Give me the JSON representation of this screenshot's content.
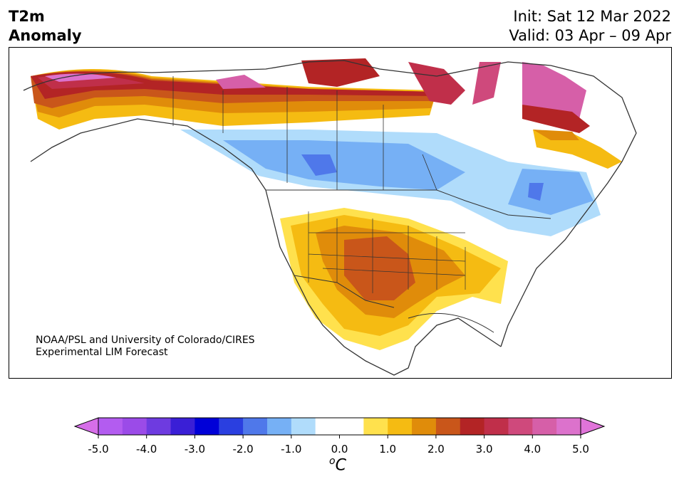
{
  "title_left_line1": "T2m",
  "title_left_line2": "Anomaly",
  "title_right_line1": "Init: Sat 12 Mar 2022",
  "title_right_line2": "Valid: 03 Apr – 09 Apr",
  "credit_line1": "NOAA/PSL and University of Colorado/CIRES",
  "credit_line2": "Experimental LIM Forecast",
  "colorbar": {
    "ticks": [
      "-5.0",
      "-4.0",
      "-3.0",
      "-2.0",
      "-1.0",
      "0.0",
      "1.0",
      "2.0",
      "3.0",
      "4.0",
      "5.0"
    ],
    "unit_base": "C",
    "unit_sup": "o",
    "colors": [
      "#b35cf0",
      "#9b4be8",
      "#6e3be0",
      "#3a1fd6",
      "#0000d8",
      "#2a3fe0",
      "#4f78ea",
      "#76b0f5",
      "#b0dcfb",
      "#ffffff",
      "#ffffff",
      "#ffe14d",
      "#f5bb12",
      "#e08c0a",
      "#c9561a",
      "#b32425",
      "#c02f4a",
      "#cf497c",
      "#d65fa8",
      "#dc72cc"
    ],
    "arrow_left_color": "#d66ee8",
    "arrow_right_color": "#e074d9"
  }
}
